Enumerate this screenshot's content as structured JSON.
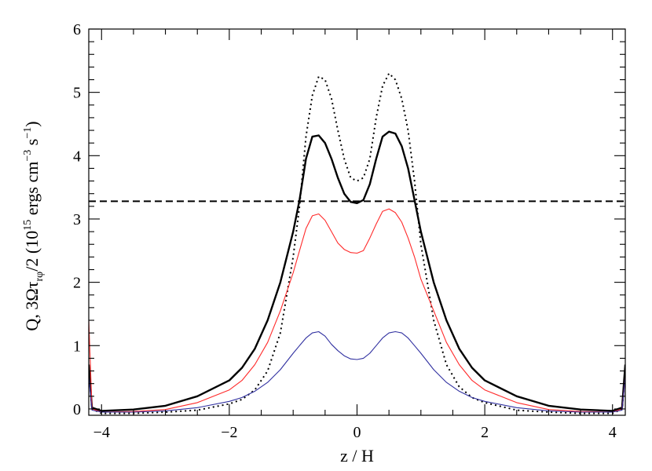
{
  "chart_data": {
    "type": "line",
    "title": "",
    "xlabel": "z / H",
    "ylabel": "Q, 3Ωτ_rφ/2 (10^15 ergs cm^-3 s^-1)",
    "ylabel_parts": {
      "prefix": "Q, 3Ωτ",
      "sub": "rφ",
      "mid": "/2 (10",
      "sup1": "15",
      "unit1": " ergs cm",
      "sup2": "−3",
      "unit2": " s",
      "sup3": "−1",
      "close": ")"
    },
    "xlim": [
      -4.2,
      4.2
    ],
    "ylim": [
      -0.1,
      6.0
    ],
    "x_ticks": [
      -4,
      -2,
      0,
      2,
      4
    ],
    "x_tick_labels": [
      "−4",
      "−2",
      "0",
      "2",
      "4"
    ],
    "y_ticks": [
      0,
      1,
      2,
      3,
      4,
      5,
      6
    ],
    "y_tick_labels": [
      "0",
      "1",
      "2",
      "3",
      "4",
      "5",
      "6"
    ],
    "grid": false,
    "series": [
      {
        "style": "dashed",
        "color": "#000000",
        "x": [
          -4.2,
          4.2
        ],
        "y": [
          3.28,
          3.28
        ]
      },
      {
        "style": "dotted",
        "color": "#000000",
        "x": [
          -4.2,
          -4.15,
          -4.0,
          -3.5,
          -3.0,
          -2.5,
          -2.0,
          -1.8,
          -1.6,
          -1.4,
          -1.2,
          -1.0,
          -0.9,
          -0.8,
          -0.7,
          -0.6,
          -0.5,
          -0.4,
          -0.3,
          -0.2,
          -0.1,
          0.0,
          0.1,
          0.2,
          0.3,
          0.4,
          0.5,
          0.6,
          0.7,
          0.8,
          0.9,
          1.0,
          1.2,
          1.4,
          1.6,
          1.8,
          2.0,
          2.5,
          3.0,
          3.5,
          4.0,
          4.15,
          4.2
        ],
        "y": [
          0.6,
          0.0,
          -0.07,
          -0.07,
          -0.05,
          -0.02,
          0.08,
          0.15,
          0.3,
          0.6,
          1.2,
          2.4,
          3.2,
          4.3,
          4.95,
          5.25,
          5.2,
          4.9,
          4.4,
          3.95,
          3.65,
          3.6,
          3.65,
          3.95,
          4.6,
          5.1,
          5.3,
          5.2,
          4.9,
          4.4,
          3.6,
          2.6,
          1.4,
          0.7,
          0.35,
          0.18,
          0.1,
          -0.02,
          -0.05,
          -0.07,
          -0.07,
          0.0,
          0.6
        ]
      },
      {
        "style": "solid-thick",
        "color": "#000000",
        "x": [
          -4.2,
          -4.15,
          -4.0,
          -3.5,
          -3.0,
          -2.5,
          -2.0,
          -1.8,
          -1.6,
          -1.4,
          -1.2,
          -1.0,
          -0.9,
          -0.8,
          -0.7,
          -0.6,
          -0.5,
          -0.4,
          -0.3,
          -0.2,
          -0.1,
          0.0,
          0.1,
          0.2,
          0.3,
          0.4,
          0.5,
          0.6,
          0.7,
          0.8,
          0.9,
          1.0,
          1.2,
          1.4,
          1.6,
          1.8,
          2.0,
          2.5,
          3.0,
          3.5,
          4.0,
          4.15,
          4.2
        ],
        "y": [
          0.7,
          0.02,
          -0.03,
          -0.01,
          0.05,
          0.2,
          0.45,
          0.65,
          0.95,
          1.4,
          2.0,
          2.8,
          3.3,
          3.95,
          4.3,
          4.32,
          4.2,
          3.95,
          3.65,
          3.4,
          3.27,
          3.25,
          3.3,
          3.55,
          3.95,
          4.3,
          4.38,
          4.35,
          4.15,
          3.8,
          3.3,
          2.8,
          2.0,
          1.4,
          0.95,
          0.65,
          0.45,
          0.2,
          0.05,
          -0.01,
          -0.03,
          0.02,
          0.7
        ]
      },
      {
        "style": "solid",
        "color": "#ff2a2a",
        "x": [
          -4.2,
          -4.15,
          -4.0,
          -3.5,
          -3.0,
          -2.5,
          -2.0,
          -1.8,
          -1.6,
          -1.4,
          -1.2,
          -1.0,
          -0.9,
          -0.8,
          -0.7,
          -0.6,
          -0.5,
          -0.4,
          -0.3,
          -0.2,
          -0.1,
          0.0,
          0.1,
          0.2,
          0.3,
          0.4,
          0.5,
          0.6,
          0.7,
          0.8,
          0.9,
          1.0,
          1.2,
          1.4,
          1.6,
          1.8,
          2.0,
          2.5,
          3.0,
          3.5,
          4.0,
          4.15,
          4.2
        ],
        "y": [
          1.4,
          0.0,
          -0.05,
          -0.04,
          -0.01,
          0.1,
          0.3,
          0.45,
          0.7,
          1.05,
          1.55,
          2.15,
          2.5,
          2.85,
          3.05,
          3.08,
          2.98,
          2.8,
          2.62,
          2.52,
          2.47,
          2.46,
          2.5,
          2.7,
          2.92,
          3.12,
          3.16,
          3.1,
          2.95,
          2.7,
          2.4,
          2.05,
          1.55,
          1.05,
          0.7,
          0.45,
          0.3,
          0.1,
          -0.01,
          -0.04,
          -0.05,
          0.0,
          0.5
        ]
      },
      {
        "style": "solid",
        "color": "#3030a0",
        "x": [
          -4.2,
          -4.15,
          -4.0,
          -3.5,
          -3.0,
          -2.5,
          -2.0,
          -1.8,
          -1.6,
          -1.4,
          -1.2,
          -1.0,
          -0.9,
          -0.8,
          -0.7,
          -0.6,
          -0.5,
          -0.4,
          -0.3,
          -0.2,
          -0.1,
          0.0,
          0.1,
          0.2,
          0.3,
          0.4,
          0.5,
          0.6,
          0.7,
          0.8,
          0.9,
          1.0,
          1.2,
          1.4,
          1.6,
          1.8,
          2.0,
          2.5,
          3.0,
          3.5,
          4.0,
          4.15,
          4.2
        ],
        "y": [
          0.5,
          -0.02,
          -0.05,
          -0.05,
          -0.03,
          0.02,
          0.12,
          0.18,
          0.28,
          0.42,
          0.62,
          0.88,
          1.0,
          1.12,
          1.2,
          1.22,
          1.15,
          1.02,
          0.92,
          0.84,
          0.79,
          0.78,
          0.8,
          0.88,
          1.0,
          1.12,
          1.2,
          1.22,
          1.2,
          1.12,
          1.0,
          0.88,
          0.62,
          0.42,
          0.28,
          0.18,
          0.12,
          0.02,
          -0.03,
          -0.05,
          -0.05,
          -0.02,
          0.5
        ]
      }
    ]
  }
}
